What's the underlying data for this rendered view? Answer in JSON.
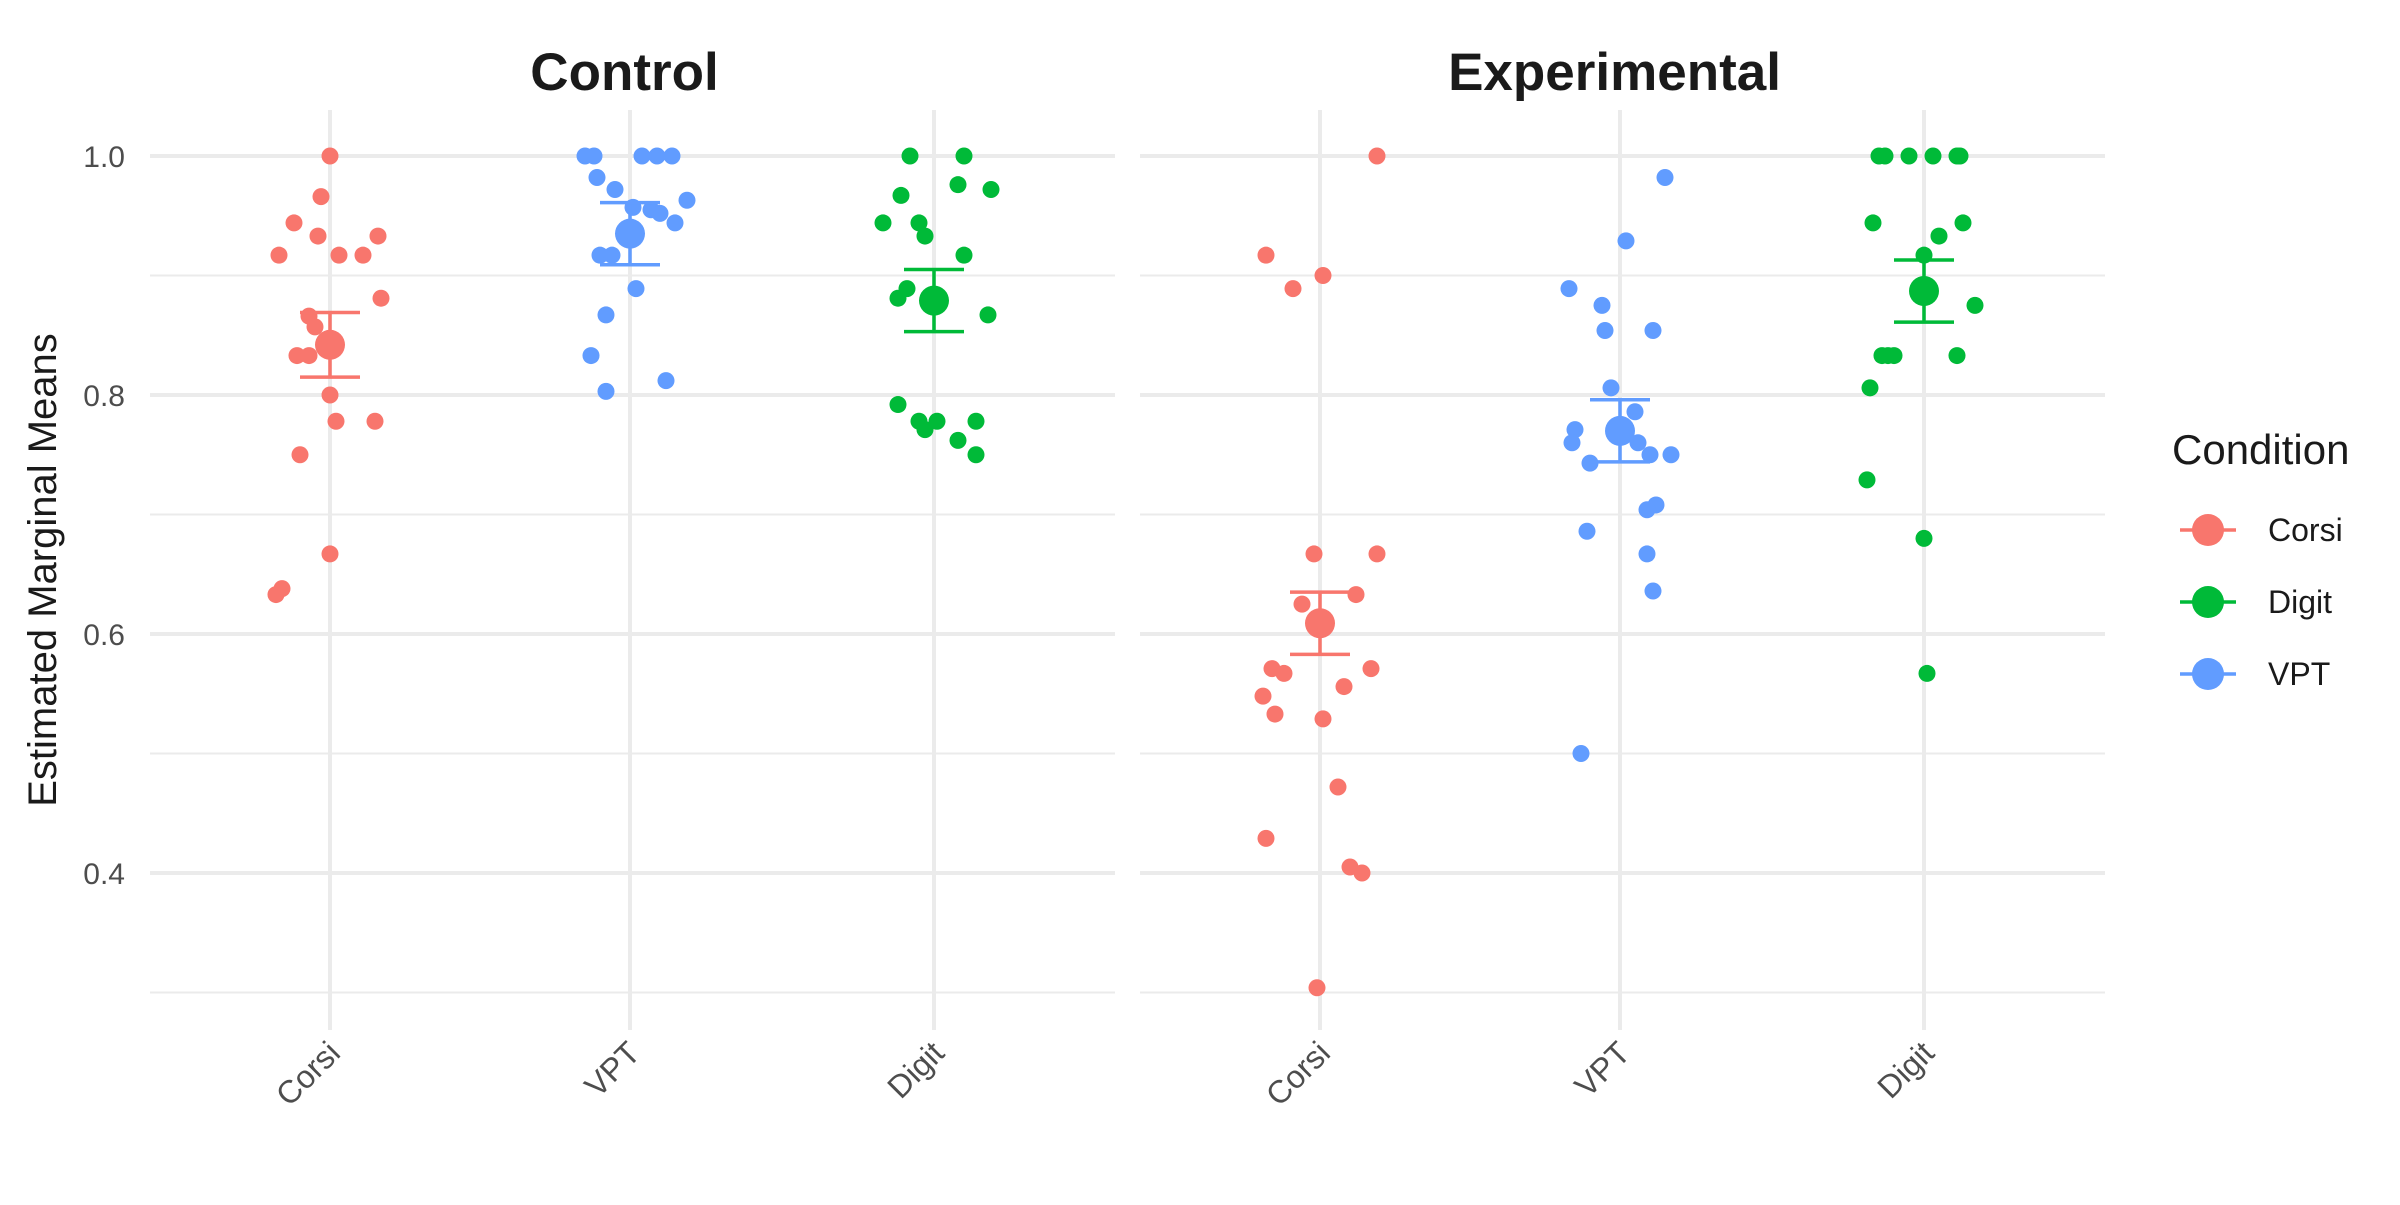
{
  "chart_data": {
    "type": "scatter",
    "ylabel": "Estimated Marginal Means",
    "ylim": [
      0.3,
      1.04
    ],
    "y_ticks": [
      "0.4",
      "0.6",
      "0.8",
      "1.0"
    ],
    "y_tick_values": [
      0.4,
      0.6,
      0.8,
      1.0
    ],
    "y_minor_ticks": [
      0.3,
      0.5,
      0.7,
      0.9
    ],
    "grid": true,
    "legend": {
      "title": "Condition",
      "position": "right",
      "entries": [
        {
          "name": "Corsi",
          "color": "#F8766D"
        },
        {
          "name": "Digit",
          "color": "#00BA38"
        },
        {
          "name": "VPT",
          "color": "#619CFF"
        }
      ]
    },
    "categories": [
      "Corsi",
      "VPT",
      "Digit"
    ],
    "colors": {
      "Corsi": "#F8766D",
      "VPT": "#619CFF",
      "Digit": "#00BA38"
    },
    "panels": [
      {
        "title": "Control",
        "groups": [
          {
            "category": "Corsi",
            "mean": 0.842,
            "ci_low": 0.815,
            "ci_high": 0.869,
            "points": [
              {
                "x": 0.0,
                "y": 1.0
              },
              {
                "x": -0.03,
                "y": 0.966
              },
              {
                "x": -0.12,
                "y": 0.944
              },
              {
                "x": -0.04,
                "y": 0.933
              },
              {
                "x": 0.16,
                "y": 0.933
              },
              {
                "x": -0.17,
                "y": 0.917
              },
              {
                "x": 0.03,
                "y": 0.917
              },
              {
                "x": 0.11,
                "y": 0.917
              },
              {
                "x": 0.17,
                "y": 0.881
              },
              {
                "x": -0.07,
                "y": 0.866
              },
              {
                "x": -0.05,
                "y": 0.857
              },
              {
                "x": -0.11,
                "y": 0.833
              },
              {
                "x": -0.07,
                "y": 0.833
              },
              {
                "x": 0.0,
                "y": 0.8
              },
              {
                "x": 0.15,
                "y": 0.778
              },
              {
                "x": 0.02,
                "y": 0.778
              },
              {
                "x": -0.1,
                "y": 0.75
              },
              {
                "x": 0.0,
                "y": 0.667
              },
              {
                "x": -0.16,
                "y": 0.638
              },
              {
                "x": -0.18,
                "y": 0.633
              }
            ]
          },
          {
            "category": "VPT",
            "mean": 0.935,
            "ci_low": 0.909,
            "ci_high": 0.961,
            "points": [
              {
                "x": -0.15,
                "y": 1.0
              },
              {
                "x": -0.12,
                "y": 1.0
              },
              {
                "x": 0.04,
                "y": 1.0
              },
              {
                "x": 0.09,
                "y": 1.0
              },
              {
                "x": 0.14,
                "y": 1.0
              },
              {
                "x": -0.11,
                "y": 0.982
              },
              {
                "x": -0.05,
                "y": 0.972
              },
              {
                "x": 0.19,
                "y": 0.963
              },
              {
                "x": 0.01,
                "y": 0.957
              },
              {
                "x": 0.07,
                "y": 0.955
              },
              {
                "x": 0.1,
                "y": 0.952
              },
              {
                "x": 0.15,
                "y": 0.944
              },
              {
                "x": -0.1,
                "y": 0.917
              },
              {
                "x": -0.06,
                "y": 0.917
              },
              {
                "x": 0.02,
                "y": 0.889
              },
              {
                "x": -0.08,
                "y": 0.867
              },
              {
                "x": -0.13,
                "y": 0.833
              },
              {
                "x": 0.12,
                "y": 0.812
              },
              {
                "x": -0.08,
                "y": 0.803
              }
            ]
          },
          {
            "category": "Digit",
            "mean": 0.879,
            "ci_low": 0.853,
            "ci_high": 0.905,
            "points": [
              {
                "x": -0.08,
                "y": 1.0
              },
              {
                "x": 0.1,
                "y": 1.0
              },
              {
                "x": -0.11,
                "y": 0.967
              },
              {
                "x": 0.08,
                "y": 0.976
              },
              {
                "x": 0.19,
                "y": 0.972
              },
              {
                "x": -0.17,
                "y": 0.944
              },
              {
                "x": -0.05,
                "y": 0.944
              },
              {
                "x": -0.03,
                "y": 0.933
              },
              {
                "x": 0.1,
                "y": 0.917
              },
              {
                "x": -0.09,
                "y": 0.889
              },
              {
                "x": -0.12,
                "y": 0.881
              },
              {
                "x": 0.0,
                "y": 0.883
              },
              {
                "x": 0.18,
                "y": 0.867
              },
              {
                "x": -0.12,
                "y": 0.792
              },
              {
                "x": -0.05,
                "y": 0.778
              },
              {
                "x": 0.01,
                "y": 0.778
              },
              {
                "x": 0.14,
                "y": 0.778
              },
              {
                "x": -0.03,
                "y": 0.771
              },
              {
                "x": 0.08,
                "y": 0.762
              },
              {
                "x": 0.14,
                "y": 0.75
              }
            ]
          }
        ]
      },
      {
        "title": "Experimental",
        "groups": [
          {
            "category": "Corsi",
            "mean": 0.609,
            "ci_low": 0.583,
            "ci_high": 0.635,
            "points": [
              {
                "x": 0.19,
                "y": 1.0
              },
              {
                "x": -0.18,
                "y": 0.917
              },
              {
                "x": 0.01,
                "y": 0.9
              },
              {
                "x": -0.09,
                "y": 0.889
              },
              {
                "x": -0.02,
                "y": 0.667
              },
              {
                "x": 0.19,
                "y": 0.667
              },
              {
                "x": 0.12,
                "y": 0.633
              },
              {
                "x": -0.06,
                "y": 0.625
              },
              {
                "x": -0.16,
                "y": 0.571
              },
              {
                "x": -0.12,
                "y": 0.567
              },
              {
                "x": 0.17,
                "y": 0.571
              },
              {
                "x": 0.08,
                "y": 0.556
              },
              {
                "x": -0.19,
                "y": 0.548
              },
              {
                "x": -0.15,
                "y": 0.533
              },
              {
                "x": 0.01,
                "y": 0.529
              },
              {
                "x": 0.06,
                "y": 0.472
              },
              {
                "x": -0.18,
                "y": 0.429
              },
              {
                "x": 0.1,
                "y": 0.405
              },
              {
                "x": 0.14,
                "y": 0.4
              },
              {
                "x": -0.01,
                "y": 0.304
              }
            ]
          },
          {
            "category": "VPT",
            "mean": 0.77,
            "ci_low": 0.744,
            "ci_high": 0.796,
            "points": [
              {
                "x": 0.15,
                "y": 0.982
              },
              {
                "x": 0.02,
                "y": 0.929
              },
              {
                "x": -0.17,
                "y": 0.889
              },
              {
                "x": -0.06,
                "y": 0.875
              },
              {
                "x": -0.05,
                "y": 0.854
              },
              {
                "x": 0.11,
                "y": 0.854
              },
              {
                "x": -0.03,
                "y": 0.806
              },
              {
                "x": 0.05,
                "y": 0.786
              },
              {
                "x": -0.15,
                "y": 0.771
              },
              {
                "x": -0.16,
                "y": 0.76
              },
              {
                "x": 0.06,
                "y": 0.76
              },
              {
                "x": -0.1,
                "y": 0.743
              },
              {
                "x": 0.1,
                "y": 0.75
              },
              {
                "x": 0.17,
                "y": 0.75
              },
              {
                "x": 0.12,
                "y": 0.708
              },
              {
                "x": 0.09,
                "y": 0.704
              },
              {
                "x": -0.11,
                "y": 0.686
              },
              {
                "x": 0.09,
                "y": 0.667
              },
              {
                "x": 0.11,
                "y": 0.636
              },
              {
                "x": -0.13,
                "y": 0.5
              }
            ]
          },
          {
            "category": "Digit",
            "mean": 0.887,
            "ci_low": 0.861,
            "ci_high": 0.913,
            "points": [
              {
                "x": -0.15,
                "y": 1.0
              },
              {
                "x": -0.13,
                "y": 1.0
              },
              {
                "x": -0.05,
                "y": 1.0
              },
              {
                "x": 0.03,
                "y": 1.0
              },
              {
                "x": 0.11,
                "y": 1.0
              },
              {
                "x": 0.12,
                "y": 1.0
              },
              {
                "x": -0.17,
                "y": 0.944
              },
              {
                "x": 0.13,
                "y": 0.944
              },
              {
                "x": 0.05,
                "y": 0.933
              },
              {
                "x": 0.0,
                "y": 0.917
              },
              {
                "x": 0.17,
                "y": 0.875
              },
              {
                "x": -0.14,
                "y": 0.833
              },
              {
                "x": -0.12,
                "y": 0.833
              },
              {
                "x": -0.1,
                "y": 0.833
              },
              {
                "x": 0.11,
                "y": 0.833
              },
              {
                "x": -0.18,
                "y": 0.806
              },
              {
                "x": -0.19,
                "y": 0.729
              },
              {
                "x": 0.0,
                "y": 0.68
              },
              {
                "x": 0.01,
                "y": 0.567
              }
            ]
          }
        ]
      }
    ]
  }
}
